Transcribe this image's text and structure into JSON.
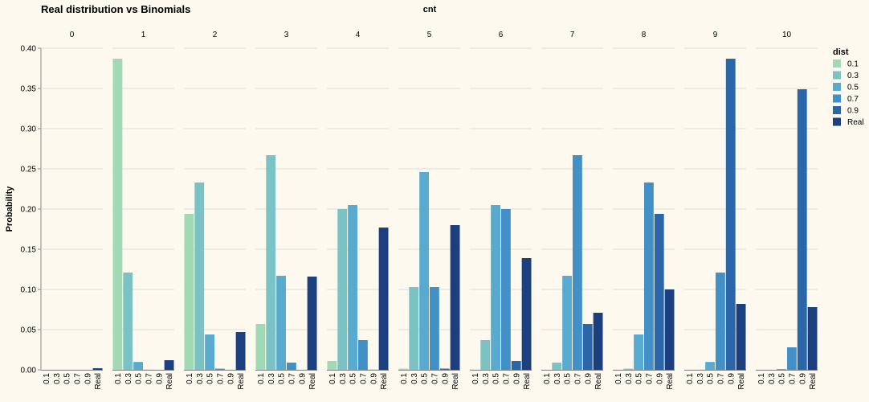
{
  "chart_data": {
    "type": "bar",
    "title": "Real distribution vs Binomials",
    "column_title": "cnt",
    "y_label": "Probability",
    "legend_title": "dist",
    "facets": [
      "0",
      "1",
      "2",
      "3",
      "4",
      "5",
      "6",
      "7",
      "8",
      "9",
      "10"
    ],
    "series": [
      {
        "name": "0.1",
        "color": "#a1d9b4",
        "values": [
          0,
          0.387,
          0.194,
          0.057,
          0.011,
          0.0015,
          0.0001,
          0,
          0,
          0,
          0
        ]
      },
      {
        "name": "0.3",
        "color": "#7bc2c4",
        "values": [
          0,
          0.121,
          0.233,
          0.267,
          0.2,
          0.103,
          0.037,
          0.009,
          0.0014,
          0.0001,
          0
        ]
      },
      {
        "name": "0.5",
        "color": "#58aacf",
        "values": [
          0,
          0.0098,
          0.044,
          0.117,
          0.205,
          0.246,
          0.205,
          0.117,
          0.044,
          0.0098,
          0.001
        ]
      },
      {
        "name": "0.7",
        "color": "#4290c6",
        "values": [
          0,
          0.0001,
          0.0014,
          0.009,
          0.037,
          0.103,
          0.2,
          0.267,
          0.233,
          0.121,
          0.028
        ]
      },
      {
        "name": "0.9",
        "color": "#2b67a8",
        "values": [
          0,
          0,
          0,
          0,
          0.0001,
          0.0015,
          0.011,
          0.057,
          0.194,
          0.387,
          0.349
        ]
      },
      {
        "name": "Real",
        "color": "#1c3f7f",
        "values": [
          0.002,
          0.012,
          0.047,
          0.116,
          0.177,
          0.18,
          0.139,
          0.071,
          0.1,
          0.082,
          0.078
        ]
      }
    ],
    "ylim": [
      0,
      0.4
    ],
    "yticks": [
      {
        "value": 0,
        "label": "0.00"
      },
      {
        "value": 0.05,
        "label": "0.05"
      },
      {
        "value": 0.1,
        "label": "0.10"
      },
      {
        "value": 0.15,
        "label": "0.15"
      },
      {
        "value": 0.2,
        "label": "0.20"
      },
      {
        "value": 0.25,
        "label": "0.25"
      },
      {
        "value": 0.3,
        "label": "0.30"
      },
      {
        "value": 0.35,
        "label": "0.35"
      },
      {
        "value": 0.4,
        "label": "0.40"
      }
    ],
    "grid": true
  }
}
